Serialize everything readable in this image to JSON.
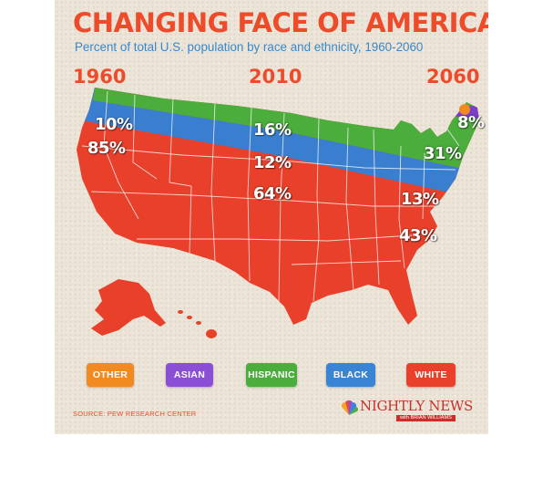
{
  "title": "CHANGING FACE OF AMERICA",
  "subtitle": "Percent of total U.S. population by race and ethnicity, 1960-2060",
  "source": "SOURCE: PEW RESEARCH CENTER",
  "brand": {
    "name": "NIGHTLY NEWS",
    "tagline": "with BRIAN WILLIAMS"
  },
  "colors": {
    "white": "#e8402a",
    "black": "#3a7fcf",
    "hispanic": "#4bad3c",
    "asian": "#7a3fc8",
    "other": "#f18a1f"
  },
  "legend": [
    {
      "key": "other",
      "label": "OTHER",
      "color": "#f18a1f"
    },
    {
      "key": "asian",
      "label": "ASIAN",
      "color": "#8b4fd6"
    },
    {
      "key": "hispanic",
      "label": "HISPANIC",
      "color": "#4bad3c"
    },
    {
      "key": "black",
      "label": "BLACK",
      "color": "#3a84d6"
    },
    {
      "key": "white",
      "label": "WHITE",
      "color": "#e8402a"
    }
  ],
  "chart_data": {
    "type": "area",
    "title": "CHANGING FACE OF AMERICA",
    "subtitle": "Percent of total U.S. population by race and ethnicity, 1960-2060",
    "x": [
      "1960",
      "2010",
      "2060"
    ],
    "series": [
      {
        "name": "WHITE",
        "values": [
          85,
          64,
          43
        ],
        "labels": [
          "85%",
          "64%",
          "43%"
        ]
      },
      {
        "name": "BLACK",
        "values": [
          10,
          12,
          13
        ],
        "labels": [
          "10%",
          "12%",
          "13%"
        ]
      },
      {
        "name": "HISPANIC",
        "values": [
          null,
          16,
          31
        ],
        "labels": [
          null,
          "16%",
          "31%"
        ]
      },
      {
        "name": "ASIAN",
        "values": [
          null,
          null,
          8
        ],
        "labels": [
          null,
          null,
          "8%"
        ]
      },
      {
        "name": "OTHER",
        "values": [
          null,
          null,
          null
        ],
        "labels": [
          null,
          null,
          null
        ]
      }
    ],
    "legend_position": "bottom"
  }
}
